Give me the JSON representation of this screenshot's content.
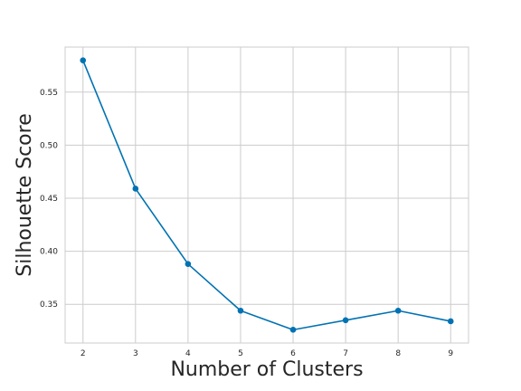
{
  "chart_data": {
    "type": "line",
    "title": "",
    "xlabel": "Number of Clusters",
    "ylabel": "Silhouette Score",
    "x": [
      2,
      3,
      4,
      5,
      6,
      7,
      8,
      9
    ],
    "series": [
      {
        "name": "",
        "values": [
          0.58,
          0.459,
          0.388,
          0.344,
          0.326,
          0.335,
          0.344,
          0.334
        ],
        "color": "#0072B2",
        "marker": "circle"
      }
    ],
    "xticks": [
      "2",
      "3",
      "4",
      "5",
      "6",
      "7",
      "8",
      "9"
    ],
    "yticks": [
      "0.35",
      "0.40",
      "0.45",
      "0.50",
      "0.55"
    ],
    "xlim": [
      1.66,
      9.34
    ],
    "ylim": [
      0.3135,
      0.5925
    ],
    "grid": true,
    "legend": "none",
    "colors": {
      "line": "#0072B2",
      "grid": "#cccccc",
      "frame": "#cccccc",
      "text": "#262626"
    }
  }
}
